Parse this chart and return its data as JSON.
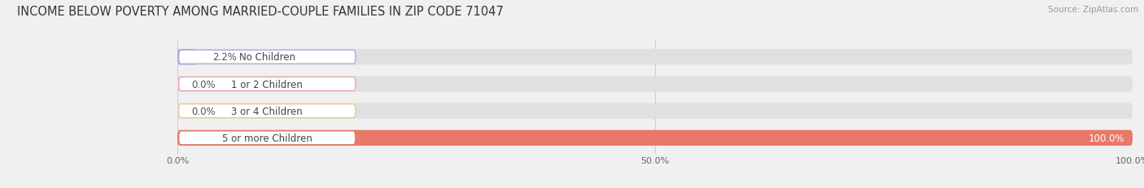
{
  "title": "INCOME BELOW POVERTY AMONG MARRIED-COUPLE FAMILIES IN ZIP CODE 71047",
  "source": "Source: ZipAtlas.com",
  "categories": [
    "No Children",
    "1 or 2 Children",
    "3 or 4 Children",
    "5 or more Children"
  ],
  "values": [
    2.2,
    0.0,
    0.0,
    100.0
  ],
  "bar_colors": [
    "#a8aed8",
    "#f0a0b8",
    "#f5c888",
    "#e87868"
  ],
  "background_color": "#f0f0f0",
  "bar_bg_color": "#e0e0e0",
  "xlim": [
    0,
    100
  ],
  "xticks": [
    0,
    50,
    100
  ],
  "xtick_labels": [
    "0.0%",
    "50.0%",
    "100.0%"
  ],
  "title_fontsize": 10.5,
  "label_fontsize": 8.5,
  "value_fontsize": 8.5,
  "bar_height": 0.58,
  "figsize": [
    14.06,
    2.32
  ],
  "dpi": 100
}
